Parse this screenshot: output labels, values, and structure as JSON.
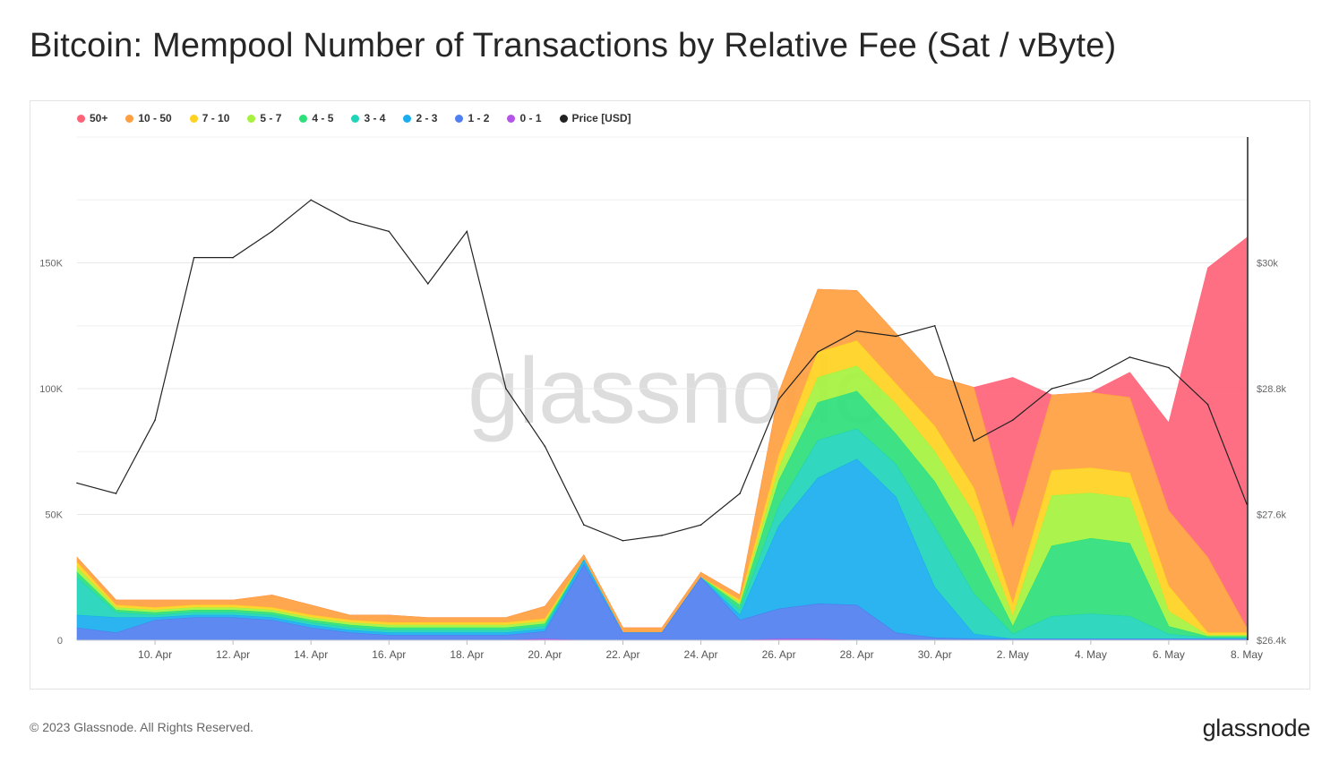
{
  "title": "Bitcoin: Mempool Number of Transactions by Relative Fee (Sat / vByte)",
  "footer": {
    "copyright": "© 2023 Glassnode. All Rights Reserved.",
    "logo": "glassnode"
  },
  "watermark": "glassnode",
  "chart_data": {
    "type": "area",
    "stacked": true,
    "legend_position": "top-left",
    "grid": true,
    "x_ticks": [
      "10. Apr",
      "12. Apr",
      "14. Apr",
      "16. Apr",
      "18. Apr",
      "20. Apr",
      "22. Apr",
      "24. Apr",
      "26. Apr",
      "28. Apr",
      "30. Apr",
      "2. May",
      "4. May",
      "6. May",
      "8. May"
    ],
    "x_range": [
      "2023-04-08",
      "2023-05-08"
    ],
    "y_left": {
      "ticks": [
        "0",
        "50K",
        "100K",
        "150K"
      ],
      "ylim": [
        0,
        200000
      ]
    },
    "y_right": {
      "ticks": [
        "$26.4k",
        "$27.6k",
        "$28.8k",
        "$30k"
      ],
      "ylim": [
        26400,
        31200
      ]
    },
    "x": [
      "2023-04-08",
      "2023-04-09",
      "2023-04-10",
      "2023-04-11",
      "2023-04-12",
      "2023-04-13",
      "2023-04-14",
      "2023-04-15",
      "2023-04-16",
      "2023-04-17",
      "2023-04-18",
      "2023-04-19",
      "2023-04-20",
      "2023-04-21",
      "2023-04-22",
      "2023-04-23",
      "2023-04-24",
      "2023-04-25",
      "2023-04-26",
      "2023-04-27",
      "2023-04-28",
      "2023-04-29",
      "2023-04-30",
      "2023-05-01",
      "2023-05-02",
      "2023-05-03",
      "2023-05-04",
      "2023-05-05",
      "2023-05-06",
      "2023-05-07",
      "2023-05-08"
    ],
    "series": [
      {
        "name": "0 - 1",
        "color": "#b554e8",
        "values": [
          0,
          0,
          0,
          0,
          0,
          0,
          0,
          0,
          0,
          0,
          0,
          0,
          500,
          0,
          0,
          0,
          0,
          0,
          500,
          500,
          0,
          0,
          0,
          0,
          0,
          0,
          0,
          0,
          0,
          0,
          0
        ]
      },
      {
        "name": "1 - 2",
        "color": "#4f7ff0",
        "values": [
          5000,
          3000,
          8000,
          9000,
          9000,
          8000,
          5000,
          3000,
          2000,
          2000,
          2000,
          2000,
          3000,
          30000,
          3000,
          3000,
          25000,
          8000,
          12000,
          14000,
          14000,
          3000,
          1000,
          500,
          500,
          500,
          500,
          500,
          500,
          500,
          500
        ]
      },
      {
        "name": "2 - 3",
        "color": "#1aaef0",
        "values": [
          5000,
          6000,
          1000,
          1000,
          1000,
          1000,
          1000,
          1000,
          1000,
          1000,
          1000,
          1000,
          1000,
          2000,
          0,
          0,
          0,
          2000,
          33000,
          50000,
          58000,
          54000,
          20000,
          2000,
          0,
          0,
          0,
          0,
          0,
          0,
          0
        ]
      },
      {
        "name": "3 - 4",
        "color": "#20d4b8",
        "values": [
          15000,
          2000,
          1000,
          1000,
          1000,
          1000,
          1000,
          1000,
          1000,
          1000,
          1000,
          1000,
          1000,
          0,
          0,
          0,
          0,
          2000,
          8000,
          15000,
          12000,
          13000,
          24000,
          16000,
          2000,
          9000,
          10000,
          9000,
          2000,
          500,
          500
        ]
      },
      {
        "name": "4 - 5",
        "color": "#2ee07a",
        "values": [
          2000,
          1000,
          1000,
          1000,
          1000,
          1000,
          1000,
          1000,
          1000,
          1000,
          1000,
          1000,
          1000,
          0,
          0,
          0,
          0,
          2000,
          10000,
          15000,
          15000,
          12000,
          18000,
          18000,
          3000,
          28000,
          30000,
          29000,
          3000,
          500,
          500
        ]
      },
      {
        "name": "5 - 7",
        "color": "#a6f23f",
        "values": [
          2000,
          1000,
          1000,
          1000,
          1000,
          1000,
          1000,
          1000,
          1000,
          1000,
          1000,
          1000,
          1000,
          0,
          0,
          0,
          0,
          1000,
          5000,
          10000,
          10000,
          12000,
          12000,
          14000,
          4000,
          20000,
          18000,
          18000,
          6000,
          500,
          500
        ]
      },
      {
        "name": "7 - 10",
        "color": "#ffd21f",
        "values": [
          2000,
          1000,
          1000,
          1000,
          1000,
          1000,
          1000,
          1000,
          1000,
          1000,
          1000,
          1000,
          1000,
          0,
          0,
          0,
          0,
          1000,
          5000,
          10000,
          10000,
          8000,
          10000,
          10000,
          5000,
          10000,
          10000,
          10000,
          10000,
          1000,
          1000
        ]
      },
      {
        "name": "10 - 50",
        "color": "#ff9f40",
        "values": [
          2000,
          2000,
          3000,
          2000,
          2000,
          5000,
          4000,
          2000,
          3000,
          2000,
          2000,
          2000,
          5000,
          2000,
          2000,
          2000,
          2000,
          2000,
          25000,
          25000,
          20000,
          20000,
          20000,
          40000,
          30000,
          30000,
          30000,
          30000,
          30000,
          30000,
          2000
        ]
      },
      {
        "name": "50+",
        "color": "#ff6378",
        "values": [
          0,
          0,
          0,
          0,
          0,
          0,
          0,
          0,
          0,
          0,
          0,
          0,
          0,
          0,
          0,
          0,
          0,
          0,
          0,
          0,
          0,
          0,
          0,
          0,
          60000,
          0,
          0,
          10000,
          35000,
          115000,
          155000
        ]
      },
      {
        "name": "Price [USD]",
        "color": "#222222",
        "values": [
          27900,
          27800,
          28500,
          30050,
          30050,
          30300,
          30600,
          30400,
          30300,
          29800,
          30300,
          28800,
          28250,
          27500,
          27350,
          27400,
          27500,
          27800,
          28700,
          29150,
          29350,
          29300,
          29400,
          28300,
          28500,
          28800,
          28900,
          29100,
          29000,
          28650,
          27700
        ]
      }
    ]
  }
}
